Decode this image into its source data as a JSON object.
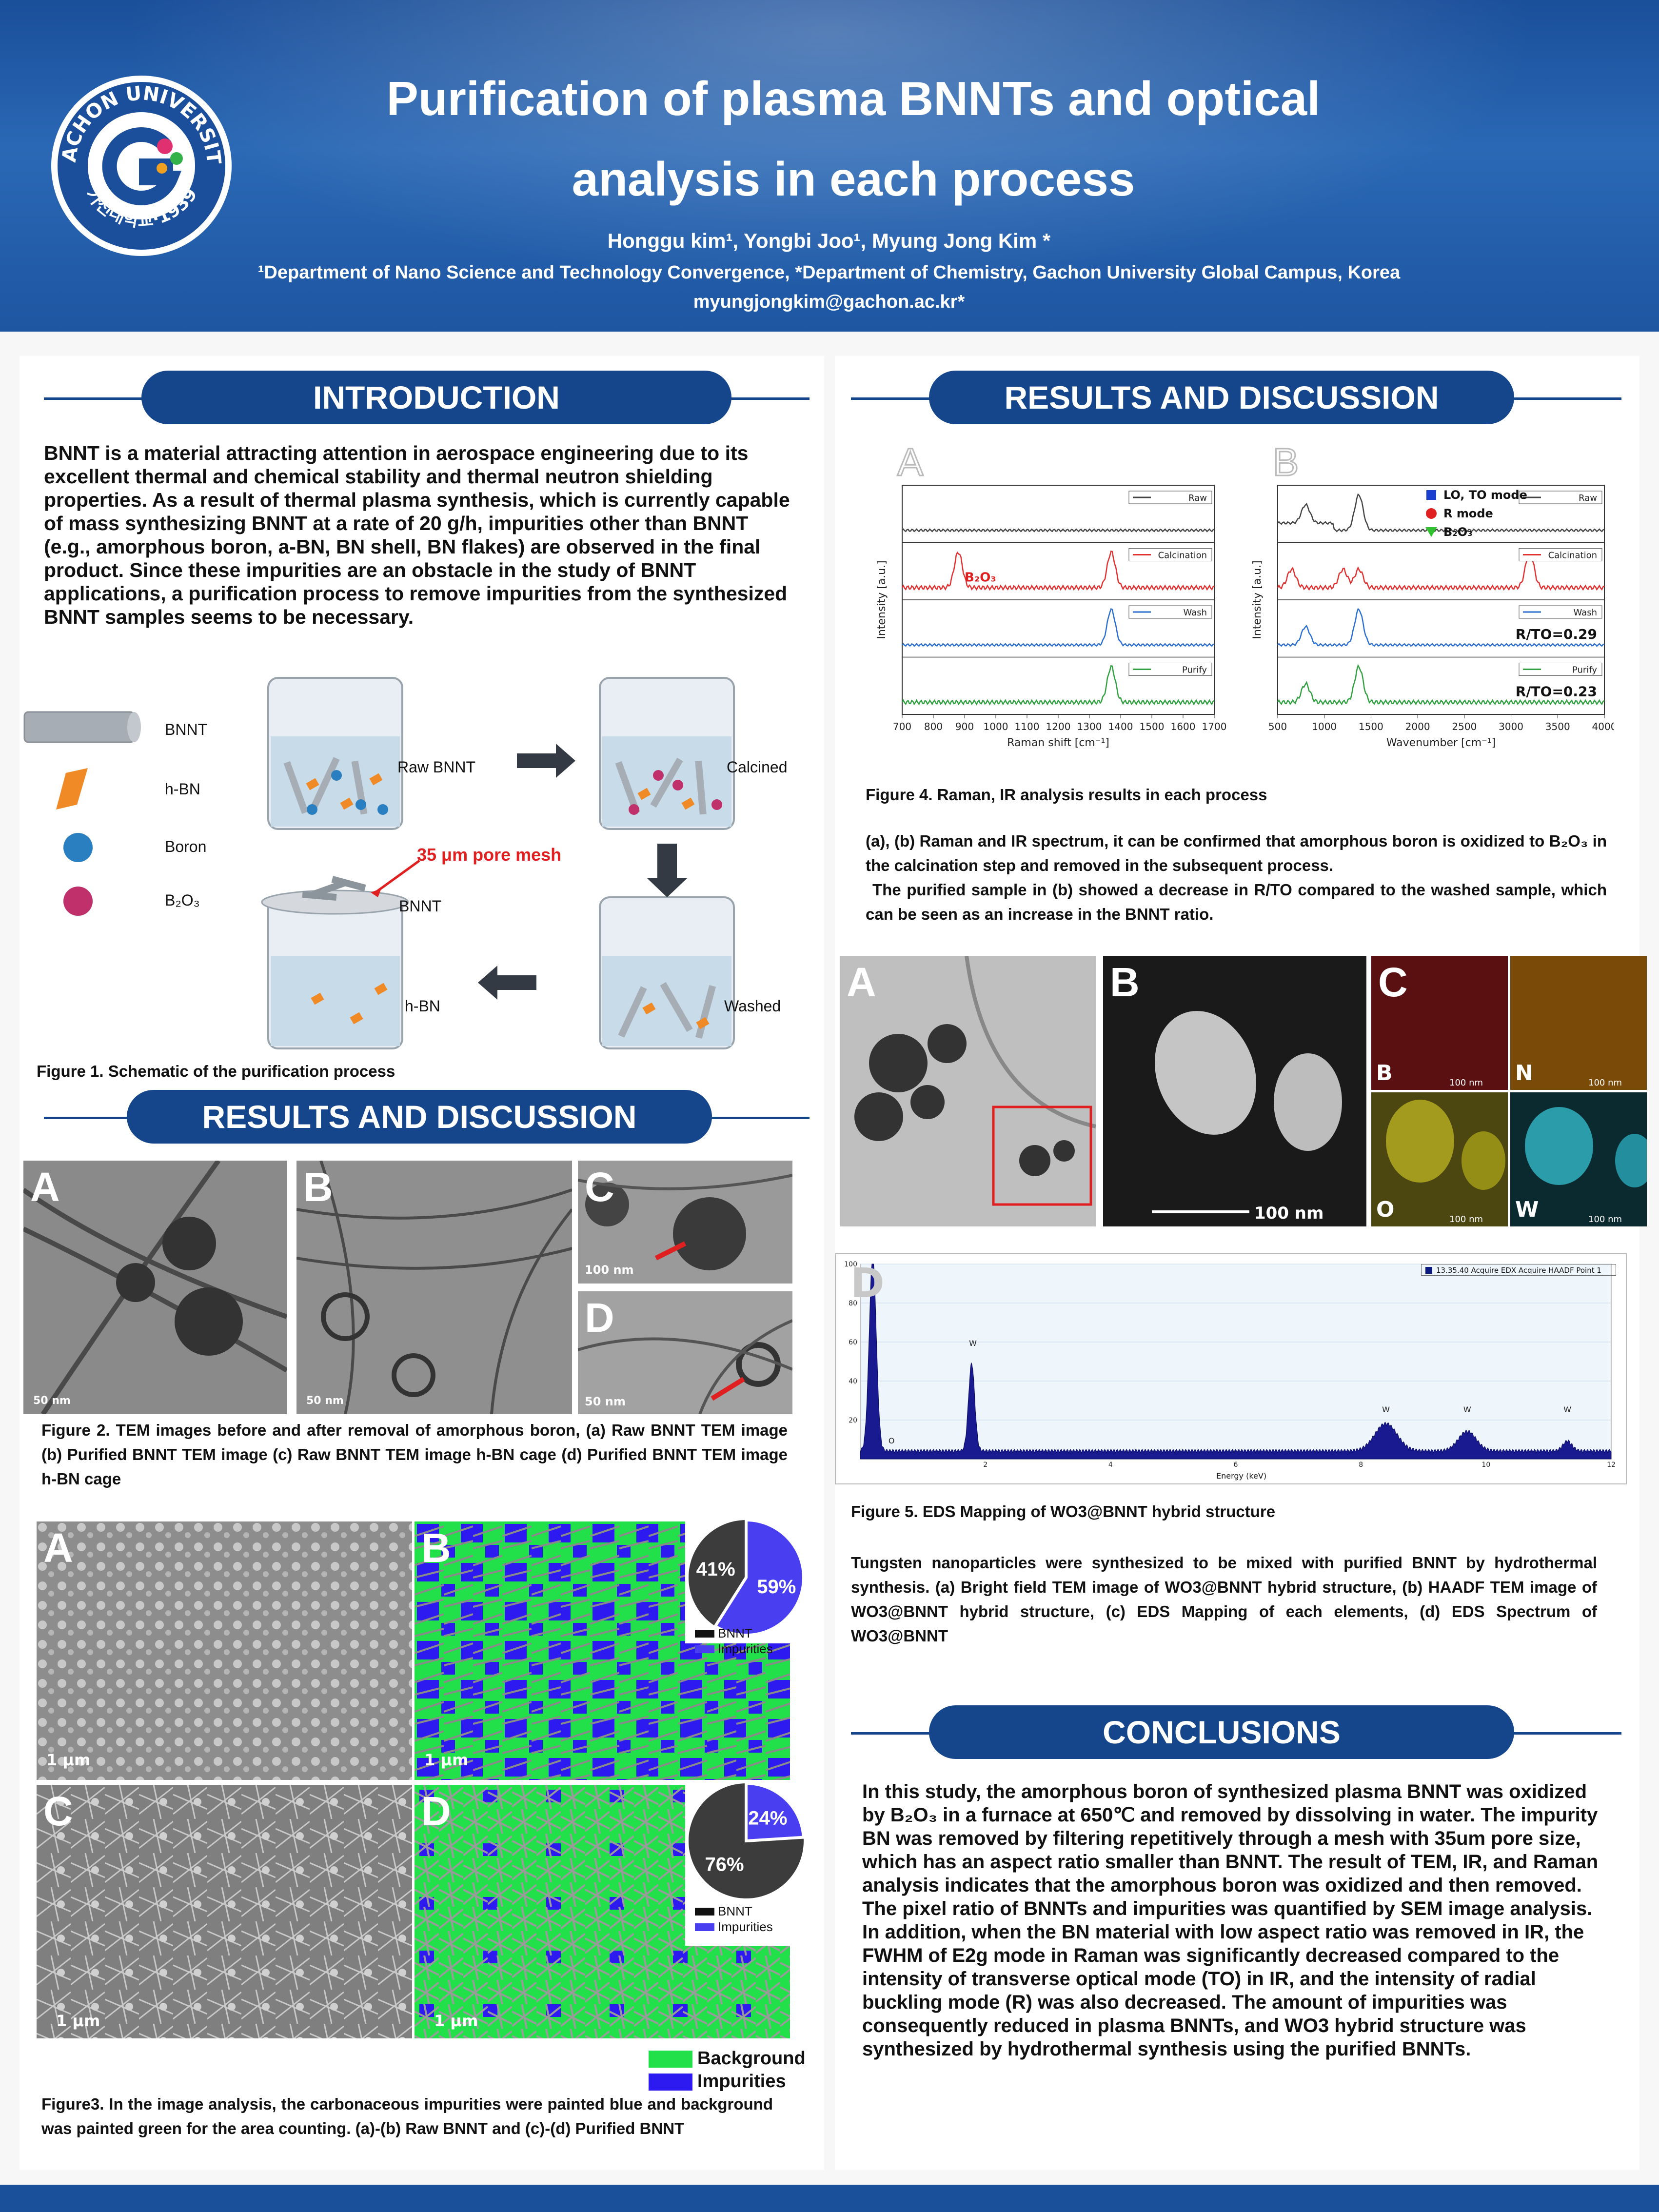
{
  "header": {
    "logo_text_top": "GACHON UNIVERSITY",
    "logo_text_bottom": "가천대학교·1939",
    "title_line1": "Purification of plasma BNNTs and optical",
    "title_line2": "analysis in each process",
    "authors": "Honggu kim¹, Yongbi Joo¹, Myung Jong Kim *",
    "affiliation": "¹Department of Nano Science and Technology Convergence, *Department of Chemistry, Gachon University Global Campus, Korea",
    "email": "myungjongkim@gachon.ac.kr*"
  },
  "introduction": {
    "heading": "INTRODUCTION",
    "body": "BNNT is a material attracting attention in aerospace engineering due to its excellent thermal and chemical stability and thermal neutron shielding properties. As a result of thermal plasma synthesis, which is currently capable of mass synthesizing BNNT at a rate of 20 g/h, impurities other than BNNT (e.g., amorphous boron, a-BN, BN shell, BN flakes) are observed in the final product. Since these impurities are an obstacle in the study of BNNT applications, a purification process to remove impurities from the synthesized BNNT samples seems to be necessary."
  },
  "figure1": {
    "legend": [
      "BNNT",
      "h-BN",
      "Boron",
      "B₂O₃"
    ],
    "labels": {
      "raw": "Raw BNNT",
      "calcined": "Calcined",
      "washed": "Washed",
      "bnnt": "BNNT",
      "hbn": "h-BN",
      "mesh": "35 μm pore mesh"
    },
    "caption": "Figure 1. Schematic of the purification process"
  },
  "results_left": {
    "heading": "RESULTS AND DISCUSSION",
    "fig2_labels": [
      "A",
      "B",
      "C",
      "D"
    ],
    "fig2_scales": [
      "50 nm",
      "50 nm",
      "100 nm",
      "50 nm"
    ],
    "fig2_caption": "Figure 2. TEM images before and after removal of amorphous boron, (a) Raw BNNT TEM image (b) Purified BNNT TEM image (c) Raw BNNT TEM image h-BN cage (d) Purified BNNT TEM image h-BN cage",
    "fig3_labels": [
      "A",
      "B",
      "C",
      "D"
    ],
    "fig3_scale": "1 μm",
    "fig3_caption": "Figure3. In the image analysis, the carbonaceous impurities were painted blue and background was painted green for the area counting. (a)-(b) Raw BNNT and (c)-(d) Purified BNNT",
    "legend_background": "Background",
    "legend_impurities": "Impurities",
    "legend_bnnt": "BNNT",
    "pies": [
      {
        "bnnt_pct": 41,
        "impurities_pct": 59,
        "bnnt_label": "41%",
        "impurities_label": "59%"
      },
      {
        "bnnt_pct": 76,
        "impurities_pct": 24,
        "bnnt_label": "76%",
        "impurities_label": "24%"
      }
    ],
    "colors": {
      "bnnt": "#3c3c3c",
      "impurities": "#4a3ff0",
      "background": "#22e04a"
    }
  },
  "results_right": {
    "heading": "RESULTS AND DISCUSSION",
    "fig4_caption": "Figure 4. Raman, IR analysis results in each process",
    "fig4_text_line1": "(a), (b) Raman and IR spectrum, it can be confirmed that amorphous boron is oxidized to B₂O₃ in the calcination step and removed in the subsequent process.",
    "fig4_text_line2": "The purified sample in (b) showed a decrease in R/TO compared to the washed sample, which can be seen as an increase in the BNNT ratio.",
    "fig5_panels": [
      "A",
      "B",
      "C",
      "D"
    ],
    "fig5_map_labels": [
      "B",
      "N",
      "O",
      "W"
    ],
    "fig5_scale": "100 nm",
    "fig5_caption": "Figure 5. EDS Mapping of WO3@BNNT hybrid structure",
    "fig5_text": "Tungsten nanoparticles were synthesized to be mixed with purified BNNT by hydrothermal synthesis. (a) Bright field TEM image of WO3@BNNT hybrid structure, (b) HAADF TEM image of WO3@BNNT hybrid structure, (c) EDS Mapping of each elements, (d) EDS Spectrum of WO3@BNNT",
    "eds_legend": "13.35.40 Acquire EDX Acquire HAADF Point 1",
    "eds_xlabel": "Energy (keV)"
  },
  "conclusions": {
    "heading": "CONCLUSIONS",
    "body": "In this study, the amorphous boron of synthesized plasma BNNT was oxidized by B₂O₃ in a furnace at 650℃ and removed by dissolving in water. The impurity BN was removed by filtering repetitively through a mesh with 35um pore size, which has an aspect ratio smaller than BNNT. The result of TEM, IR, and Raman analysis indicates that the amorphous boron was oxidized and then removed. The pixel ratio of BNNTs and impurities was quantified by SEM image analysis. In addition, when the BN material with low aspect ratio was removed in IR, the FWHM of E2g mode in Raman was significantly decreased compared to the intensity of transverse optical mode (TO) in IR, and the intensity of radial buckling mode (R) was also decreased. The amount of impurities was consequently reduced in plasma BNNTs, and WO3 hybrid structure was synthesized by hydrothermal synthesis using the purified BNNTs."
  },
  "chart_data": [
    {
      "type": "line",
      "panel": "A",
      "xlabel": "Raman shift [cm⁻¹]",
      "ylabel": "Intensity [a.u.]",
      "xlim": [
        700,
        1700
      ],
      "xticks": [
        700,
        800,
        900,
        1000,
        1100,
        1200,
        1300,
        1400,
        1500,
        1600,
        1700
      ],
      "annotation": "B₂O₃",
      "series": [
        {
          "name": "Raw",
          "color": "#444444",
          "peaks": []
        },
        {
          "name": "Calcination",
          "color": "#e03030",
          "peaks": [
            880,
            1370
          ]
        },
        {
          "name": "Wash",
          "color": "#2a6fd0",
          "peaks": [
            1370
          ]
        },
        {
          "name": "Purify",
          "color": "#30a040",
          "peaks": [
            1370
          ]
        }
      ]
    },
    {
      "type": "line",
      "panel": "B",
      "xlabel": "Wavenumber [cm⁻¹]",
      "ylabel": "Intensity [a.u.]",
      "xlim": [
        500,
        4000
      ],
      "xticks": [
        500,
        1000,
        1500,
        2000,
        2500,
        3000,
        3500,
        4000
      ],
      "legend": [
        "LO, TO mode",
        "R mode",
        "B₂O₃"
      ],
      "annotations": [
        "R/TO=0.29",
        "R/TO=0.23"
      ],
      "series": [
        {
          "name": "Raw",
          "color": "#444444",
          "peaks": [
            800,
            1370
          ]
        },
        {
          "name": "Calcination",
          "color": "#e03030",
          "peaks": [
            650,
            1200,
            1370,
            3200
          ]
        },
        {
          "name": "Wash",
          "color": "#2a6fd0",
          "peaks": [
            800,
            1370
          ]
        },
        {
          "name": "Purify",
          "color": "#30a040",
          "peaks": [
            800,
            1370
          ]
        }
      ]
    },
    {
      "type": "bar",
      "panel": "D",
      "xlabel": "Energy (keV)",
      "xlim": [
        0,
        12
      ],
      "ylim": [
        0,
        100
      ],
      "yticks": [
        20,
        40,
        60,
        80,
        100
      ],
      "xticks": [
        2,
        4,
        6,
        8,
        10,
        12
      ],
      "peaks_keV": [
        0.5,
        1.8,
        8.4,
        9.7,
        11.3
      ],
      "peak_labels": [
        "O",
        "W",
        "W",
        "W",
        "W"
      ]
    }
  ]
}
